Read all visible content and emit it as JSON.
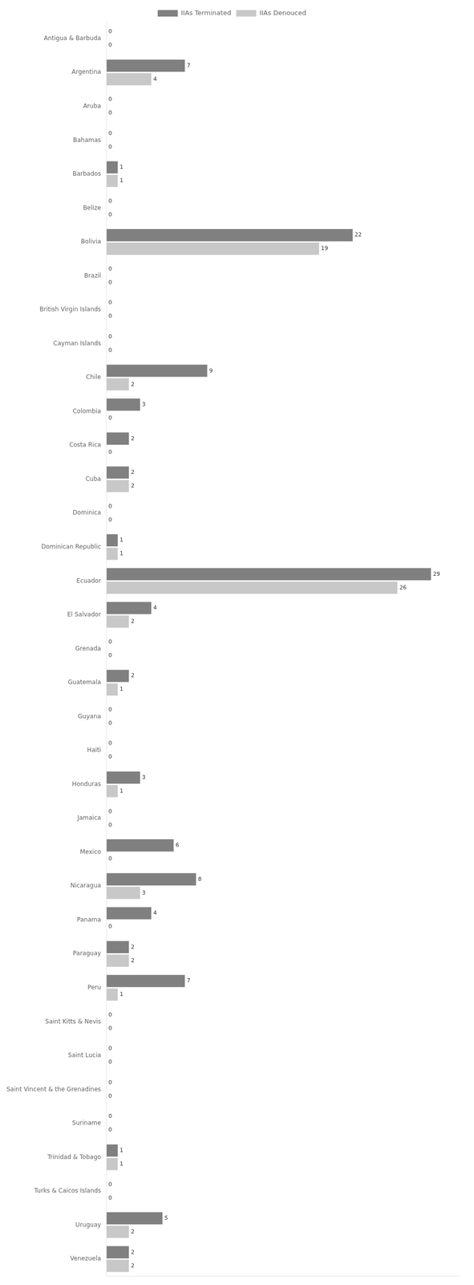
{
  "chart_data": {
    "type": "bar",
    "orientation": "horizontal",
    "categories": [
      "Antigua & Barbuda",
      "Argentina",
      "Aruba",
      "Bahamas",
      "Barbados",
      "Belize",
      "Bolivia",
      "Brazil",
      "British Virgin Islands",
      "Cayman Islands",
      "Chile",
      "Colombia",
      "Costa Rica",
      "Cuba",
      "Dominica",
      "Dominican Republic",
      "Ecuador",
      "El Salvador",
      "Grenada",
      "Guatemala",
      "Guyana",
      "Haiti",
      "Honduras",
      "Jamaica",
      "Mexico",
      "Nicaragua",
      "Panama",
      "Paraguay",
      "Peru",
      "Saint Kitts & Nevis",
      "Saint Lucia",
      "Saint Vincent & the Grenadines",
      "Suriname",
      "Trinidad & Tobago",
      "Turks & Caicos Islands",
      "Uruguay",
      "Venezuela"
    ],
    "series": [
      {
        "name": "IIAs Terminated",
        "color": "#808080",
        "values": [
          0,
          7,
          0,
          0,
          1,
          0,
          22,
          0,
          0,
          0,
          9,
          3,
          2,
          2,
          0,
          1,
          29,
          4,
          0,
          2,
          0,
          0,
          3,
          0,
          6,
          8,
          4,
          2,
          7,
          0,
          0,
          0,
          0,
          1,
          0,
          5,
          2
        ]
      },
      {
        "name": "IIAs Denouced",
        "color": "#c8c8c8",
        "values": [
          0,
          4,
          0,
          0,
          1,
          0,
          19,
          0,
          0,
          0,
          2,
          0,
          0,
          2,
          0,
          1,
          26,
          2,
          0,
          1,
          0,
          0,
          1,
          0,
          0,
          3,
          0,
          2,
          1,
          0,
          0,
          0,
          0,
          1,
          0,
          2,
          2
        ]
      }
    ],
    "xlim": [
      0,
      31.5
    ],
    "grid": false,
    "legend": "top",
    "data_labels": true,
    "tick_labels": "y"
  }
}
